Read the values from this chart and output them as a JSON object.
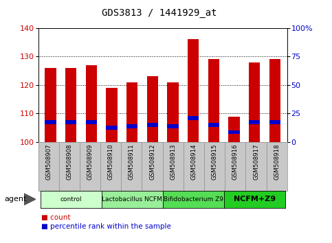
{
  "title": "GDS3813 / 1441929_at",
  "samples": [
    "GSM508907",
    "GSM508908",
    "GSM508909",
    "GSM508910",
    "GSM508911",
    "GSM508912",
    "GSM508913",
    "GSM508914",
    "GSM508915",
    "GSM508916",
    "GSM508917",
    "GSM508918"
  ],
  "count_values": [
    126,
    126,
    127,
    119,
    121,
    123,
    121,
    136,
    129,
    109,
    128,
    129
  ],
  "percentile_values": [
    107.0,
    107.0,
    107.0,
    105.0,
    105.5,
    106.0,
    105.5,
    108.5,
    106.0,
    103.5,
    107.0,
    107.0
  ],
  "ylim": [
    100,
    140
  ],
  "yticks_left": [
    100,
    110,
    120,
    130,
    140
  ],
  "yticks_right": [
    0,
    25,
    50,
    75,
    100
  ],
  "bar_color": "#cc0000",
  "percentile_color": "#0000cc",
  "background_color": "#ffffff",
  "bar_width": 0.55,
  "groups": [
    {
      "label": "control",
      "start": 0,
      "end": 2,
      "color": "#ccffcc"
    },
    {
      "label": "Lactobacillus NCFM",
      "start": 3,
      "end": 5,
      "color": "#99ee99"
    },
    {
      "label": "Bifidobacterium Z9",
      "start": 6,
      "end": 8,
      "color": "#55dd55"
    },
    {
      "label": "NCFM+Z9",
      "start": 9,
      "end": 11,
      "color": "#22cc22"
    }
  ],
  "sample_box_color": "#c8c8c8",
  "legend_count_label": "count",
  "legend_pct_label": "percentile rank within the sample",
  "agent_label": "agent"
}
